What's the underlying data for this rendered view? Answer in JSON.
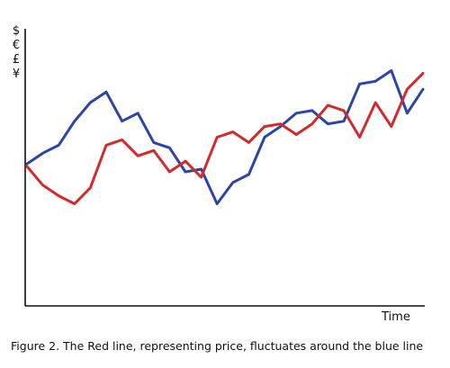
{
  "chart_data": {
    "type": "line",
    "title": "",
    "xlabel": "Time",
    "ylabel_symbols": [
      "$",
      "€",
      "£",
      "¥"
    ],
    "caption": "Figure 2. The Red line, representing price, fluctuates around the blue line",
    "ylim": [
      0,
      100
    ],
    "grid": false,
    "legend": "none",
    "x": [
      0,
      4,
      8,
      12,
      16,
      20,
      24,
      28,
      32,
      36,
      40,
      44,
      48,
      52,
      56,
      60,
      64,
      68,
      72,
      76,
      80,
      84,
      88,
      92,
      96,
      100
    ],
    "series": [
      {
        "color": "#2B45A8",
        "values": [
          52,
          56,
          59,
          68,
          75,
          79,
          68,
          71,
          60,
          58,
          49,
          50,
          37,
          45,
          48,
          62,
          66,
          71,
          72,
          67,
          68,
          82,
          83,
          87,
          71,
          80
        ]
      },
      {
        "color": "#D42A2C",
        "values": [
          51,
          44,
          40,
          37,
          43,
          59,
          61,
          55,
          57,
          49,
          53,
          47,
          62,
          64,
          60,
          66,
          67,
          63,
          67,
          74,
          72,
          62,
          75,
          66,
          80,
          86
        ]
      }
    ]
  }
}
